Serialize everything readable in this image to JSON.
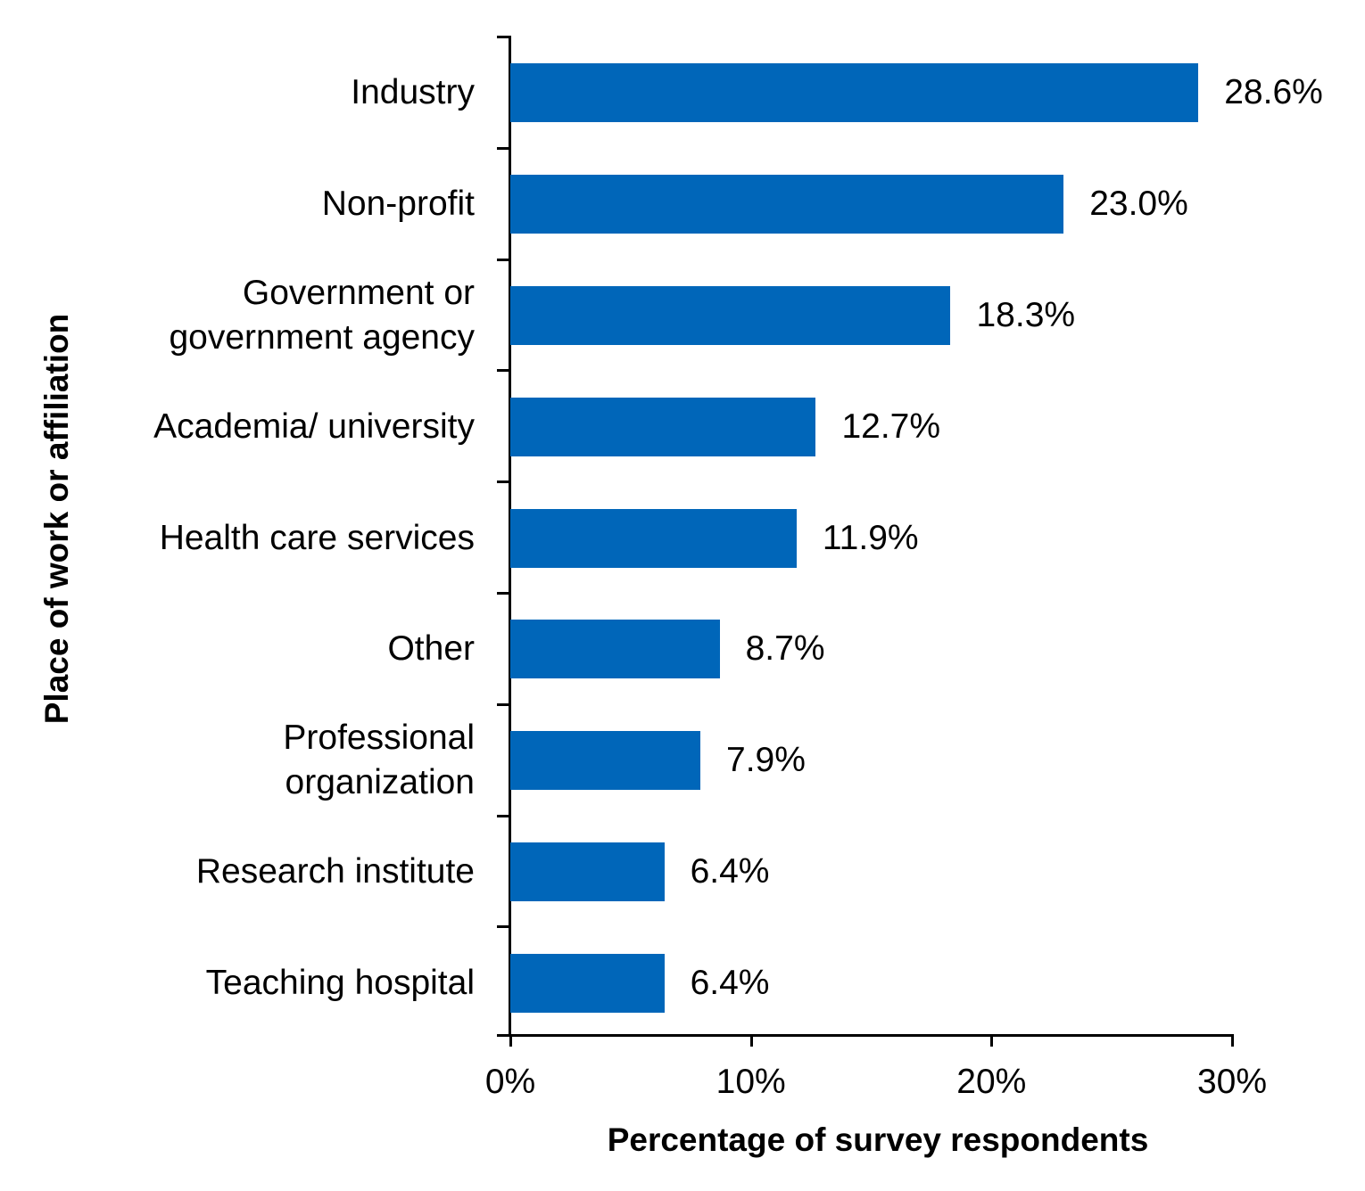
{
  "chart_data": {
    "type": "bar",
    "orientation": "horizontal",
    "title": "",
    "xlabel": "Percentage of survey respondents",
    "ylabel": "Place of work or affiliation",
    "categories": [
      "Industry",
      "Non-profit",
      "Government or\ngovernment agency",
      "Academia/ university",
      "Health care services",
      "Other",
      "Professional\norganization",
      "Research institute",
      "Teaching hospital"
    ],
    "values": [
      28.6,
      23.0,
      18.3,
      12.7,
      11.9,
      8.7,
      7.9,
      6.4,
      6.4
    ],
    "value_labels": [
      "28.6%",
      "23.0%",
      "18.3%",
      "12.7%",
      "11.9%",
      "8.7%",
      "7.9%",
      "6.4%",
      "6.4%"
    ],
    "xlim": [
      0,
      30
    ],
    "xticks": [
      0,
      10,
      20,
      30
    ],
    "xtick_labels": [
      "0%",
      "10%",
      "20%",
      "30%"
    ],
    "grid": false,
    "legend": null,
    "bar_color": "#0066b9"
  }
}
